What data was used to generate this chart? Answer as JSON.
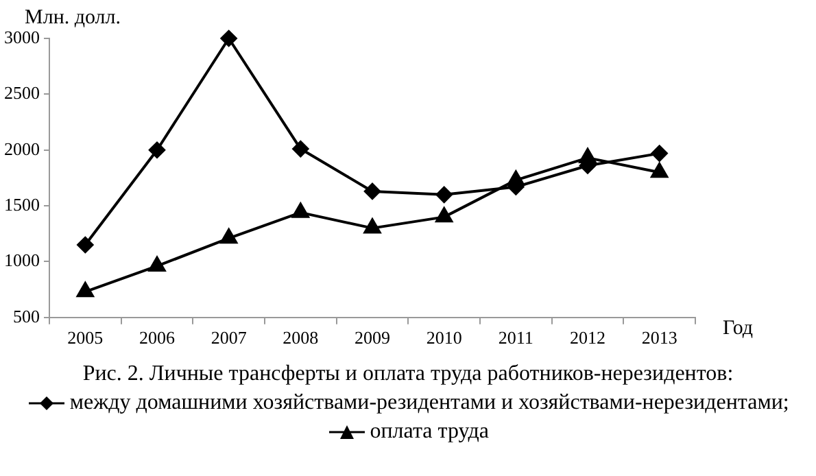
{
  "chart_data": {
    "type": "line",
    "title": "Рис. 2. Личные трансферты и оплата труда работников-нерезидентов:",
    "xlabel": "Год",
    "ylabel": "Млн. долл.",
    "categories": [
      "2005",
      "2006",
      "2007",
      "2008",
      "2009",
      "2010",
      "2011",
      "2012",
      "2013"
    ],
    "series": [
      {
        "name": "между домашними хозяйствами-резидентами и хозяйствами-нерезидентами;",
        "color": "#000000",
        "marker": "diamond",
        "values": [
          1150,
          2000,
          3000,
          2010,
          1630,
          1600,
          1670,
          1860,
          1970
        ]
      },
      {
        "name": "оплата труда",
        "color": "#000000",
        "marker": "triangle",
        "values": [
          730,
          960,
          1210,
          1440,
          1300,
          1400,
          1730,
          1930,
          1800
        ]
      }
    ],
    "ylim": [
      500,
      3000
    ],
    "yticks": [
      500,
      1000,
      1500,
      2000,
      2500,
      3000
    ],
    "grid": false,
    "legend": "bottom",
    "line_style": "solid"
  }
}
